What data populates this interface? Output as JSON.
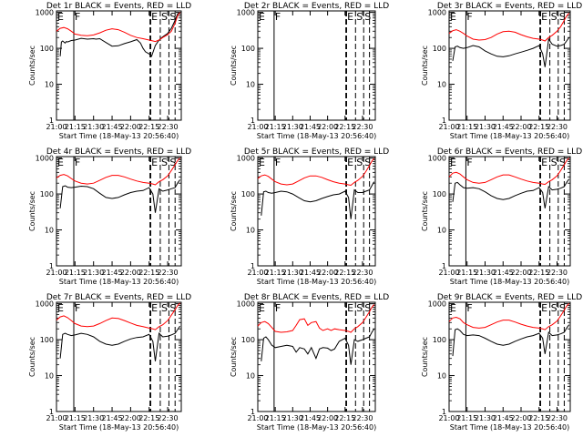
{
  "colors": {
    "events": "#000000",
    "lld": "#ff0000",
    "axes": "#000000",
    "background": "#ffffff"
  },
  "common": {
    "ylabel": "Counts/sec",
    "xlabel": "Start Time (18-May-13 20:56:40)",
    "x_ticks": [
      "21:00",
      "21:15",
      "21:30",
      "21:45",
      "22:00",
      "22:15",
      "22:30"
    ],
    "x_tick_minutes": [
      0,
      15,
      30,
      45,
      60,
      75,
      90
    ],
    "x_range_minutes": [
      0,
      101
    ],
    "y_ticks": [
      "1",
      "10",
      "100",
      "1000"
    ],
    "y_tick_values": [
      1,
      10,
      100,
      1000
    ],
    "y_range": [
      1,
      1100
    ],
    "y_scale": "log",
    "markers": [
      {
        "label": "E",
        "minute": 0,
        "style": "solid"
      },
      {
        "label": "F",
        "minute": 14,
        "style": "solid"
      },
      {
        "label": "E",
        "minute": 76,
        "style": "dashed-thick"
      },
      {
        "label": "S",
        "minute": 84,
        "style": "dashed"
      },
      {
        "label": "S",
        "minute": 91,
        "style": "dashed"
      },
      {
        "label": "",
        "minute": 96,
        "style": "dashed"
      }
    ]
  },
  "chart_data": [
    {
      "type": "line",
      "title": "Det 1r BLACK = Events, RED = LLD",
      "series": [
        {
          "name": "Events",
          "x": [
            3,
            4,
            5,
            6,
            7,
            8,
            9,
            12,
            15,
            20,
            25,
            30,
            32,
            35,
            40,
            45,
            50,
            55,
            60,
            65,
            68,
            70,
            72,
            75,
            77,
            80,
            83,
            86,
            90,
            93,
            96,
            98,
            100
          ],
          "values": [
            60,
            150,
            160,
            150,
            140,
            155,
            150,
            165,
            170,
            190,
            180,
            185,
            180,
            185,
            145,
            115,
            118,
            135,
            152,
            175,
            140,
            100,
            80,
            70,
            60,
            120,
            170,
            210,
            260,
            360,
            600,
            900,
            1000
          ]
        },
        {
          "name": "LLD",
          "x": [
            0,
            3,
            6,
            9,
            12,
            15,
            20,
            25,
            30,
            35,
            40,
            45,
            50,
            55,
            60,
            65,
            70,
            75,
            80,
            83,
            86,
            90,
            93,
            96,
            98,
            100
          ],
          "values": [
            300,
            360,
            380,
            350,
            300,
            250,
            230,
            225,
            235,
            270,
            320,
            350,
            330,
            280,
            230,
            200,
            185,
            170,
            155,
            170,
            200,
            240,
            300,
            500,
            800,
            1000
          ]
        }
      ]
    },
    {
      "type": "line",
      "title": "Det 2r BLACK = Events, RED = LLD",
      "series": []
    },
    {
      "type": "line",
      "title": "Det 3r BLACK = Events, RED = LLD",
      "series": [
        {
          "name": "Events",
          "x": [
            3,
            5,
            7,
            9,
            12,
            15,
            20,
            25,
            30,
            35,
            40,
            45,
            50,
            55,
            60,
            65,
            70,
            75,
            78,
            80,
            83,
            86,
            90,
            93,
            96,
            98,
            100
          ],
          "values": [
            45,
            110,
            115,
            105,
            100,
            105,
            120,
            110,
            85,
            70,
            60,
            58,
            62,
            70,
            78,
            88,
            100,
            120,
            70,
            30,
            180,
            130,
            115,
            120,
            130,
            160,
            200
          ]
        },
        {
          "name": "LLD",
          "x": [
            0,
            3,
            6,
            9,
            12,
            15,
            20,
            25,
            30,
            35,
            40,
            45,
            50,
            55,
            60,
            65,
            70,
            75,
            78,
            80,
            83,
            86,
            90,
            93,
            96,
            98,
            100
          ],
          "values": [
            260,
            310,
            330,
            300,
            260,
            220,
            180,
            170,
            175,
            200,
            250,
            290,
            300,
            280,
            240,
            210,
            190,
            180,
            170,
            160,
            200,
            230,
            300,
            400,
            600,
            800,
            950
          ]
        }
      ]
    },
    {
      "type": "line",
      "title": "Det 4r BLACK = Events, RED = LLD",
      "series": [
        {
          "name": "Events",
          "x": [
            3,
            5,
            7,
            9,
            12,
            15,
            20,
            25,
            30,
            35,
            40,
            45,
            50,
            55,
            60,
            65,
            70,
            75,
            78,
            80,
            83,
            86,
            90,
            93,
            96,
            98,
            100
          ],
          "values": [
            40,
            160,
            170,
            155,
            150,
            155,
            165,
            160,
            140,
            105,
            80,
            75,
            80,
            95,
            110,
            120,
            125,
            150,
            100,
            30,
            140,
            120,
            130,
            140,
            150,
            200,
            250
          ]
        },
        {
          "name": "LLD",
          "x": [
            0,
            3,
            6,
            9,
            12,
            15,
            20,
            25,
            30,
            35,
            40,
            45,
            50,
            55,
            60,
            65,
            70,
            75,
            78,
            80,
            83,
            86,
            90,
            93,
            96,
            98,
            100
          ],
          "values": [
            280,
            330,
            350,
            320,
            270,
            230,
            200,
            190,
            200,
            240,
            290,
            330,
            330,
            300,
            260,
            230,
            210,
            200,
            190,
            180,
            220,
            250,
            320,
            450,
            650,
            850,
            1000
          ]
        }
      ]
    },
    {
      "type": "line",
      "title": "Det 5r BLACK = Events, RED = LLD",
      "series": [
        {
          "name": "Events",
          "x": [
            3,
            5,
            7,
            9,
            12,
            15,
            20,
            25,
            30,
            35,
            40,
            45,
            50,
            55,
            60,
            65,
            70,
            75,
            78,
            80,
            83,
            86,
            90,
            93,
            96,
            98,
            100
          ],
          "values": [
            25,
            115,
            120,
            110,
            105,
            110,
            120,
            115,
            100,
            80,
            65,
            60,
            65,
            75,
            85,
            95,
            100,
            120,
            80,
            20,
            130,
            110,
            110,
            120,
            130,
            170,
            220
          ]
        },
        {
          "name": "LLD",
          "x": [
            0,
            3,
            6,
            9,
            12,
            15,
            20,
            25,
            30,
            35,
            40,
            45,
            50,
            55,
            60,
            65,
            70,
            75,
            78,
            80,
            83,
            86,
            90,
            93,
            96,
            98,
            100
          ],
          "values": [
            270,
            320,
            340,
            310,
            260,
            220,
            190,
            180,
            190,
            230,
            280,
            320,
            320,
            290,
            250,
            220,
            200,
            190,
            180,
            175,
            210,
            240,
            310,
            430,
            620,
            820,
            980
          ]
        }
      ]
    },
    {
      "type": "line",
      "title": "Det 6r BLACK = Events, RED = LLD",
      "series": [
        {
          "name": "Events",
          "x": [
            3,
            5,
            7,
            9,
            12,
            15,
            20,
            25,
            30,
            35,
            40,
            45,
            50,
            55,
            60,
            65,
            70,
            75,
            78,
            80,
            83,
            86,
            90,
            93,
            96,
            98,
            100
          ],
          "values": [
            60,
            200,
            210,
            180,
            150,
            145,
            150,
            140,
            115,
            90,
            75,
            70,
            75,
            90,
            105,
            120,
            125,
            150,
            110,
            40,
            160,
            130,
            135,
            145,
            160,
            210,
            260
          ]
        },
        {
          "name": "LLD",
          "x": [
            0,
            3,
            6,
            9,
            12,
            15,
            20,
            25,
            30,
            35,
            40,
            45,
            50,
            55,
            60,
            65,
            70,
            75,
            78,
            80,
            83,
            86,
            90,
            93,
            96,
            98,
            100
          ],
          "values": [
            300,
            380,
            400,
            360,
            300,
            250,
            210,
            200,
            210,
            250,
            300,
            340,
            340,
            300,
            260,
            230,
            210,
            200,
            190,
            185,
            220,
            250,
            320,
            450,
            650,
            850,
            1000
          ]
        }
      ]
    },
    {
      "type": "line",
      "title": "Det 7r BLACK = Events, RED = LLD",
      "series": [
        {
          "name": "Events",
          "x": [
            3,
            5,
            7,
            9,
            12,
            15,
            20,
            25,
            30,
            35,
            40,
            45,
            50,
            55,
            60,
            65,
            70,
            75,
            78,
            80,
            83,
            86,
            90,
            93,
            96,
            98,
            100
          ],
          "values": [
            30,
            140,
            150,
            140,
            130,
            135,
            150,
            140,
            120,
            90,
            75,
            70,
            75,
            90,
            105,
            115,
            120,
            140,
            90,
            25,
            150,
            120,
            125,
            135,
            150,
            190,
            240
          ]
        },
        {
          "name": "LLD",
          "x": [
            0,
            3,
            6,
            9,
            12,
            15,
            20,
            25,
            30,
            35,
            40,
            45,
            50,
            55,
            60,
            65,
            70,
            75,
            78,
            80,
            83,
            86,
            90,
            93,
            96,
            98,
            100
          ],
          "values": [
            350,
            430,
            460,
            410,
            340,
            280,
            240,
            230,
            240,
            280,
            340,
            400,
            390,
            340,
            290,
            250,
            230,
            210,
            200,
            190,
            230,
            260,
            340,
            480,
            680,
            880,
            1050
          ]
        }
      ]
    },
    {
      "type": "line",
      "title": "Det 8r BLACK = Events, RED = LLD",
      "series": [
        {
          "name": "Events",
          "x": [
            3,
            5,
            7,
            9,
            12,
            15,
            20,
            25,
            30,
            33,
            36,
            40,
            43,
            46,
            50,
            53,
            56,
            60,
            63,
            66,
            70,
            75,
            78,
            80,
            83,
            86,
            90,
            93,
            96,
            98,
            100
          ],
          "values": [
            25,
            110,
            120,
            100,
            70,
            60,
            65,
            70,
            65,
            45,
            60,
            55,
            40,
            60,
            30,
            55,
            60,
            58,
            50,
            55,
            90,
            110,
            70,
            20,
            100,
            90,
            100,
            110,
            120,
            160,
            200
          ]
        },
        {
          "name": "LLD",
          "x": [
            0,
            3,
            6,
            9,
            12,
            15,
            20,
            25,
            30,
            33,
            36,
            40,
            43,
            46,
            50,
            53,
            56,
            60,
            63,
            66,
            70,
            75,
            78,
            80,
            83,
            86,
            90,
            93,
            96,
            98,
            100
          ],
          "values": [
            240,
            300,
            320,
            280,
            220,
            170,
            160,
            165,
            180,
            250,
            360,
            380,
            250,
            300,
            320,
            210,
            180,
            200,
            180,
            200,
            190,
            180,
            170,
            160,
            200,
            230,
            300,
            420,
            600,
            800,
            950
          ]
        }
      ]
    },
    {
      "type": "line",
      "title": "Det 9r BLACK = Events, RED = LLD",
      "series": [
        {
          "name": "Events",
          "x": [
            3,
            5,
            7,
            9,
            12,
            15,
            20,
            25,
            30,
            35,
            40,
            45,
            50,
            55,
            60,
            65,
            70,
            75,
            78,
            80,
            83,
            86,
            90,
            93,
            96,
            98,
            100
          ],
          "values": [
            35,
            190,
            200,
            180,
            140,
            130,
            135,
            130,
            110,
            90,
            75,
            70,
            75,
            90,
            105,
            120,
            130,
            150,
            110,
            40,
            160,
            130,
            135,
            145,
            160,
            210,
            260
          ]
        },
        {
          "name": "LLD",
          "x": [
            0,
            3,
            6,
            9,
            12,
            15,
            20,
            25,
            30,
            35,
            40,
            45,
            50,
            55,
            60,
            65,
            70,
            75,
            78,
            80,
            83,
            86,
            90,
            93,
            96,
            98,
            100
          ],
          "values": [
            320,
            400,
            420,
            380,
            300,
            260,
            220,
            210,
            220,
            260,
            310,
            350,
            350,
            310,
            270,
            240,
            220,
            210,
            200,
            190,
            230,
            260,
            330,
            460,
            660,
            860,
            1020
          ]
        }
      ]
    }
  ]
}
